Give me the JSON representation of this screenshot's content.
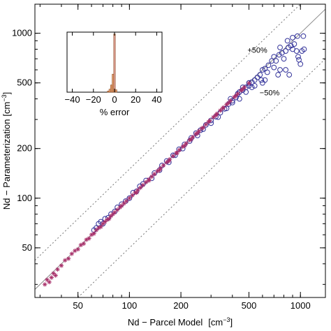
{
  "chart_data": [
    {
      "type": "scatter",
      "xlabel": "Nd − Parcel Model",
      "xlabel_unit_prefix": "[cm",
      "xlabel_unit_sup": "−3",
      "xlabel_unit_suffix": "]",
      "ylabel": "Nd − Parameterization",
      "ylabel_unit_prefix": "[cm",
      "ylabel_unit_sup": "−3",
      "ylabel_unit_suffix": "]",
      "xscale": "log",
      "yscale": "log",
      "xlim": [
        28,
        1400
      ],
      "ylim": [
        25,
        1500
      ],
      "xticks": [
        50,
        100,
        200,
        500,
        1000
      ],
      "xtick_labels": [
        "50",
        "100",
        "200",
        "500",
        "1000"
      ],
      "yticks": [
        50,
        100,
        200,
        500,
        1000
      ],
      "ytick_labels": [
        "50",
        "100",
        "200",
        "500",
        "1000"
      ],
      "reference_lines": [
        {
          "factor": 1.0,
          "style": "solid",
          "color": "#888888"
        },
        {
          "factor": 1.5,
          "style": "dotted",
          "color": "#777777"
        },
        {
          "factor": 0.5,
          "style": "dotted",
          "color": "#777777"
        }
      ],
      "annotations": [
        {
          "text": "+50%",
          "x": 560,
          "y": 760
        },
        {
          "text": "−50%",
          "x": 660,
          "y": 420
        }
      ],
      "series": [
        {
          "marker": "circle",
          "color": "#33339a",
          "points": [
            [
              62,
              64
            ],
            [
              64,
              66
            ],
            [
              66,
              70
            ],
            [
              68,
              72
            ],
            [
              72,
              75
            ],
            [
              78,
              80
            ],
            [
              85,
              88
            ],
            [
              95,
              96
            ],
            [
              105,
              108
            ],
            [
              115,
              118
            ],
            [
              125,
              128
            ],
            [
              140,
              142
            ],
            [
              155,
              158
            ],
            [
              165,
              168
            ],
            [
              180,
              182
            ],
            [
              195,
              198
            ],
            [
              210,
              212
            ],
            [
              230,
              232
            ],
            [
              245,
              248
            ],
            [
              260,
              258
            ],
            [
              280,
              278
            ],
            [
              300,
              296
            ],
            [
              320,
              312
            ],
            [
              340,
              330
            ],
            [
              360,
              348
            ],
            [
              380,
              372
            ],
            [
              400,
              390
            ],
            [
              420,
              408
            ],
            [
              440,
              440
            ],
            [
              460,
              452
            ],
            [
              480,
              470
            ],
            [
              500,
              480
            ],
            [
              520,
              505
            ],
            [
              540,
              520
            ],
            [
              560,
              540
            ],
            [
              580,
              560
            ],
            [
              600,
              600
            ],
            [
              620,
              610
            ],
            [
              650,
              640
            ],
            [
              680,
              680
            ],
            [
              700,
              720
            ],
            [
              720,
              680
            ],
            [
              750,
              740
            ],
            [
              780,
              760
            ],
            [
              800,
              700
            ],
            [
              820,
              780
            ],
            [
              850,
              820
            ],
            [
              880,
              840
            ],
            [
              900,
              800
            ],
            [
              920,
              860
            ],
            [
              950,
              780
            ],
            [
              970,
              720
            ],
            [
              1000,
              650
            ],
            [
              980,
              690
            ],
            [
              1020,
              780
            ],
            [
              1050,
              800
            ],
            [
              700,
              620
            ],
            [
              640,
              580
            ],
            [
              590,
              520
            ],
            [
              540,
              480
            ],
            [
              520,
              470
            ],
            [
              480,
              440
            ],
            [
              440,
              400
            ],
            [
              400,
              380
            ],
            [
              370,
              350
            ],
            [
              330,
              310
            ],
            [
              300,
              285
            ],
            [
              270,
              262
            ],
            [
              250,
              240
            ],
            [
              225,
              222
            ],
            [
              205,
              200
            ],
            [
              185,
              182
            ],
            [
              170,
              165
            ],
            [
              150,
              148
            ],
            [
              135,
              132
            ],
            [
              120,
              122
            ],
            [
              110,
              110
            ],
            [
              100,
              100
            ],
            [
              90,
              92
            ],
            [
              82,
              83
            ],
            [
              75,
              76
            ],
            [
              70,
              70
            ],
            [
              760,
              820
            ],
            [
              840,
              900
            ],
            [
              900,
              940
            ],
            [
              960,
              960
            ],
            [
              1040,
              960
            ],
            [
              860,
              560
            ],
            [
              820,
              600
            ],
            [
              760,
              600
            ],
            [
              740,
              560
            ],
            [
              620,
              520
            ],
            [
              600,
              500
            ],
            [
              500,
              500
            ],
            [
              460,
              470
            ],
            [
              430,
              430
            ],
            [
              390,
              400
            ]
          ]
        },
        {
          "marker": "star",
          "color": "#a8306a",
          "points": [
            [
              32,
              30
            ],
            [
              33,
              32
            ],
            [
              34,
              31
            ],
            [
              35,
              33
            ],
            [
              36,
              35
            ],
            [
              37,
              34
            ],
            [
              38,
              37
            ],
            [
              40,
              39
            ],
            [
              42,
              42
            ],
            [
              44,
              43
            ],
            [
              46,
              46
            ],
            [
              48,
              48
            ],
            [
              50,
              49
            ],
            [
              52,
              52
            ],
            [
              54,
              53
            ],
            [
              56,
              56
            ],
            [
              58,
              57
            ],
            [
              60,
              60
            ],
            [
              62,
              61
            ],
            [
              64,
              64
            ],
            [
              66,
              66
            ],
            [
              68,
              67
            ],
            [
              70,
              70
            ],
            [
              72,
              72
            ],
            [
              74,
              74
            ],
            [
              76,
              75
            ],
            [
              78,
              78
            ],
            [
              80,
              80
            ],
            [
              82,
              82
            ],
            [
              85,
              85
            ],
            [
              88,
              88
            ],
            [
              90,
              90
            ],
            [
              93,
              93
            ],
            [
              96,
              96
            ],
            [
              100,
              100
            ],
            [
              104,
              104
            ],
            [
              108,
              108
            ],
            [
              112,
              112
            ],
            [
              116,
              116
            ],
            [
              120,
              120
            ],
            [
              125,
              125
            ],
            [
              130,
              130
            ],
            [
              135,
              135
            ],
            [
              140,
              140
            ],
            [
              146,
              146
            ],
            [
              152,
              152
            ],
            [
              158,
              158
            ],
            [
              165,
              165
            ],
            [
              172,
              172
            ],
            [
              180,
              180
            ],
            [
              188,
              188
            ],
            [
              196,
              196
            ],
            [
              205,
              205
            ],
            [
              215,
              215
            ],
            [
              225,
              225
            ],
            [
              235,
              235
            ],
            [
              245,
              245
            ],
            [
              255,
              255
            ],
            [
              265,
              265
            ],
            [
              280,
              280
            ],
            [
              295,
              295
            ],
            [
              310,
              310
            ],
            [
              325,
              325
            ],
            [
              340,
              340
            ],
            [
              355,
              355
            ],
            [
              370,
              370
            ],
            [
              390,
              390
            ],
            [
              410,
              410
            ],
            [
              430,
              430
            ],
            [
              450,
              450
            ],
            [
              470,
              470
            ],
            [
              110,
              108
            ],
            [
              130,
              128
            ],
            [
              150,
              148
            ],
            [
              170,
              168
            ],
            [
              190,
              188
            ],
            [
              210,
              208
            ],
            [
              230,
              228
            ],
            [
              250,
              248
            ],
            [
              270,
              268
            ],
            [
              290,
              290
            ],
            [
              320,
              318
            ],
            [
              350,
              350
            ],
            [
              380,
              378
            ],
            [
              420,
              418
            ],
            [
              460,
              458
            ],
            [
              500,
              498
            ]
          ]
        }
      ]
    },
    {
      "type": "bar",
      "title": "",
      "xlabel": "% error",
      "ylabel": "",
      "xlim": [
        -45,
        45
      ],
      "ylim": [
        0,
        1
      ],
      "xticks": [
        -40,
        -20,
        0,
        20,
        40
      ],
      "xtick_labels": [
        "−40",
        "−20",
        "0",
        "20",
        "40"
      ],
      "bar_color": "#e8a070",
      "bar_edge": "#8a4a20",
      "bin_width": 1.5,
      "bins": [
        {
          "x": -6,
          "value": 0.02
        },
        {
          "x": -4.5,
          "value": 0.05
        },
        {
          "x": -3,
          "value": 0.12
        },
        {
          "x": -1.5,
          "value": 0.3
        },
        {
          "x": 0,
          "value": 0.97
        },
        {
          "x": 1.5,
          "value": 0.04
        }
      ],
      "marker_line_x": 0
    }
  ]
}
